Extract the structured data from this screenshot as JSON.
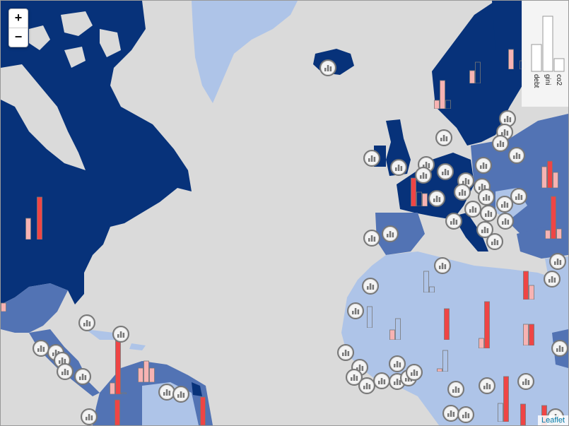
{
  "zoom_in_label": "+",
  "zoom_out_label": "−",
  "attribution": "Leaflet",
  "legend": {
    "labels": [
      "debt",
      "gini",
      "co2"
    ],
    "values": [
      0.5,
      1.0,
      0.25
    ]
  },
  "colors": {
    "ocean": "#dadada",
    "dark": "#07327a",
    "mid": "#5273b4",
    "light": "#aec4e8",
    "bar_pink": "#f7b3b3",
    "bar_red": "#ef4545"
  },
  "marker_icon_name": "bar-chart-icon"
}
